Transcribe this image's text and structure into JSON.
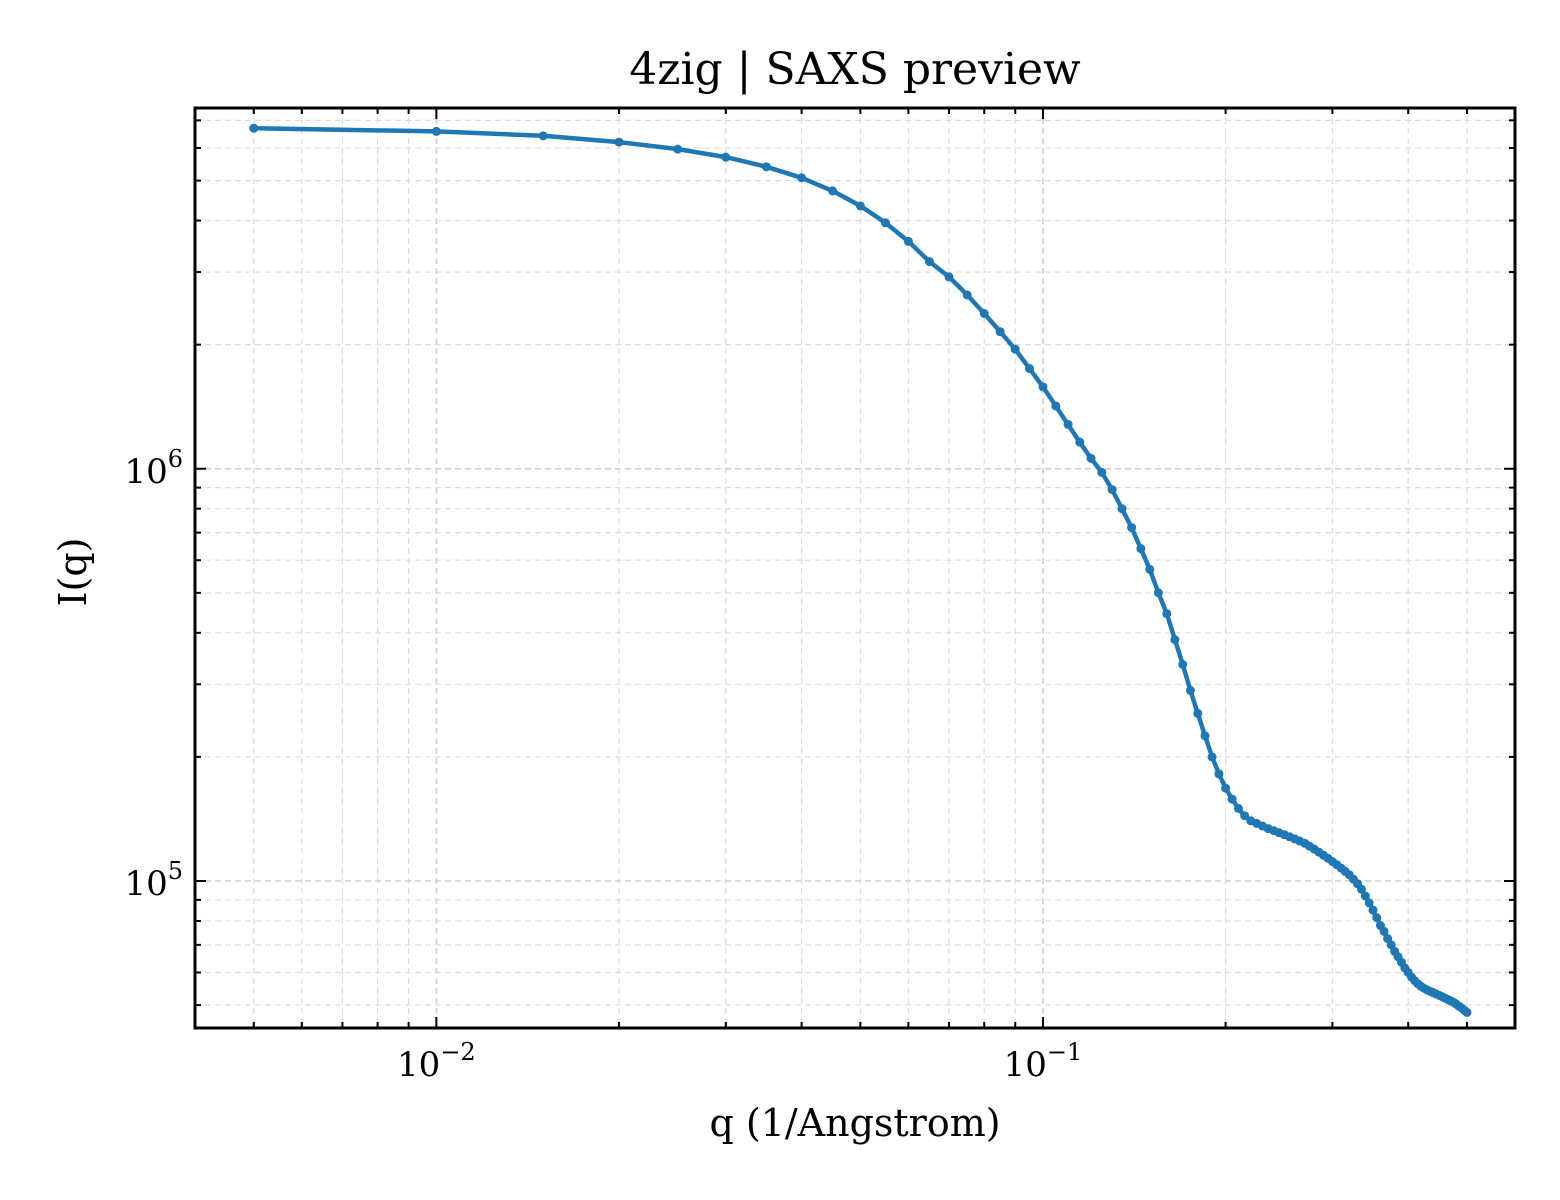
{
  "chart_data": {
    "type": "line",
    "title": "4zig | SAXS preview",
    "xlabel": "q (1/Angstrom)",
    "ylabel": "I(q)",
    "xscale": "log",
    "yscale": "log",
    "xlim": [
      0.004,
      0.6
    ],
    "ylim": [
      44000,
      7500000
    ],
    "grid": true,
    "legend": "none",
    "x_ticks": [
      {
        "value": 0.01,
        "base": "10",
        "exp": "−2"
      },
      {
        "value": 0.1,
        "base": "10",
        "exp": "−1"
      }
    ],
    "y_ticks": [
      {
        "value": 100000,
        "base": "10",
        "exp": "5"
      },
      {
        "value": 1000000,
        "base": "10",
        "exp": "6"
      }
    ],
    "series": [
      {
        "color": "#1f77b4",
        "x": [
          0.005,
          0.01,
          0.015,
          0.02,
          0.025,
          0.03,
          0.035,
          0.04,
          0.045,
          0.05,
          0.055,
          0.06,
          0.065,
          0.07,
          0.075,
          0.08,
          0.085,
          0.09,
          0.095,
          0.1,
          0.105,
          0.11,
          0.115,
          0.12,
          0.125,
          0.13,
          0.135,
          0.14,
          0.145,
          0.15,
          0.155,
          0.16,
          0.165,
          0.17,
          0.175,
          0.18,
          0.185,
          0.19,
          0.195,
          0.2,
          0.205,
          0.21,
          0.215,
          0.22,
          0.225,
          0.23,
          0.235,
          0.24,
          0.245,
          0.25,
          0.255,
          0.26,
          0.265,
          0.27,
          0.275,
          0.28,
          0.285,
          0.29,
          0.295,
          0.3,
          0.305,
          0.31,
          0.315,
          0.32,
          0.325,
          0.33,
          0.335,
          0.34,
          0.345,
          0.35,
          0.355,
          0.36,
          0.365,
          0.37,
          0.375,
          0.38,
          0.385,
          0.39,
          0.395,
          0.4,
          0.405,
          0.41,
          0.415,
          0.42,
          0.425,
          0.43,
          0.435,
          0.44,
          0.445,
          0.45,
          0.455,
          0.46,
          0.465,
          0.47,
          0.475,
          0.48,
          0.485,
          0.49,
          0.495,
          0.5
        ],
        "y": [
          6700000,
          6580000,
          6420000,
          6200000,
          5960000,
          5700000,
          5400000,
          5080000,
          4720000,
          4340000,
          3950000,
          3560000,
          3180000,
          2920000,
          2640000,
          2380000,
          2150000,
          1950000,
          1750000,
          1580000,
          1420000,
          1280000,
          1160000,
          1060000,
          980000,
          890000,
          800000,
          720000,
          640000,
          570000,
          500000,
          445000,
          385000,
          335000,
          290000,
          255000,
          225000,
          200000,
          182000,
          168000,
          158000,
          150000,
          144000,
          140000,
          138000,
          136000,
          134000,
          132500,
          131000,
          129500,
          128000,
          126500,
          125000,
          123500,
          121500,
          119500,
          117500,
          115500,
          113500,
          111500,
          109500,
          107500,
          105500,
          103500,
          101000,
          98500,
          95500,
          92000,
          88500,
          85000,
          81500,
          78000,
          75500,
          72500,
          70000,
          67500,
          65500,
          63500,
          61500,
          60000,
          58500,
          57300,
          56300,
          55500,
          54900,
          54400,
          54000,
          53600,
          53200,
          52800,
          52400,
          52000,
          51600,
          51200,
          50800,
          50300,
          49700,
          49200,
          48600,
          48000
        ]
      }
    ]
  }
}
